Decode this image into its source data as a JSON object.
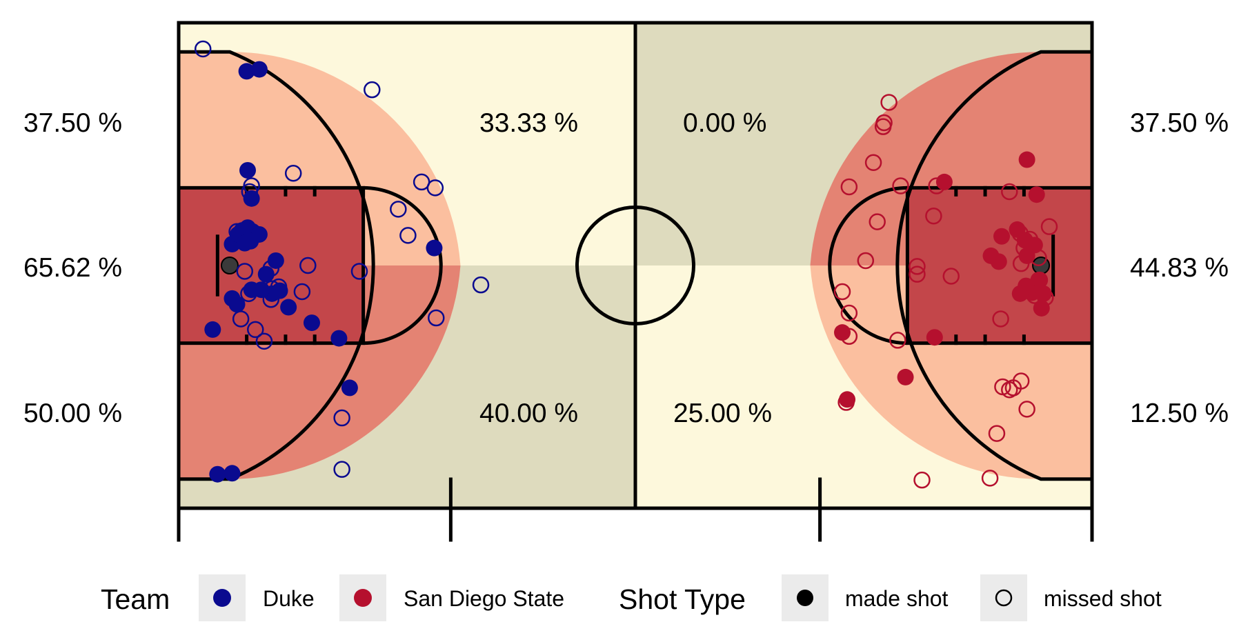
{
  "chart_data": {
    "type": "scatter",
    "colors": {
      "Duke": "#0a0a8f",
      "San Diego State": "#b5102e",
      "black": "#000000",
      "zone_light_yellow": "#fdf8dc",
      "zone_olive": "#dedbbe",
      "zone_light_orange": "#fbbf9f",
      "zone_salmon": "#e48373",
      "zone_red": "#c3464a"
    },
    "zone_labels": [
      {
        "id": "duke-top-corner",
        "text": "37.50 %"
      },
      {
        "id": "duke-paint",
        "text": "65.62 %"
      },
      {
        "id": "duke-bottom-corner",
        "text": "50.00 %"
      },
      {
        "id": "duke-top-mid",
        "text": "33.33 %"
      },
      {
        "id": "duke-bottom-mid",
        "text": "40.00 %"
      },
      {
        "id": "sdsu-top-mid",
        "text": "0.00 %"
      },
      {
        "id": "sdsu-bottom-mid",
        "text": "25.00 %"
      },
      {
        "id": "sdsu-top-corner",
        "text": "37.50 %"
      },
      {
        "id": "sdsu-paint",
        "text": "44.83 %"
      },
      {
        "id": "sdsu-bottom-corner",
        "text": "12.50 %"
      }
    ],
    "x": [
      0,
      94
    ],
    "y": [
      0,
      50
    ],
    "series": [
      {
        "name": "Duke",
        "made": [
          [
            7,
            45
          ],
          [
            8.3,
            45.2
          ],
          [
            7.1,
            34.8
          ],
          [
            7.5,
            31.9
          ],
          [
            5.5,
            27.2
          ],
          [
            6.1,
            28.2
          ],
          [
            6.5,
            28.6
          ],
          [
            7.1,
            28.9
          ],
          [
            7.6,
            28.5
          ],
          [
            8.3,
            28.2
          ],
          [
            6.8,
            27.3
          ],
          [
            7.4,
            27.5
          ],
          [
            10,
            25.5
          ],
          [
            9,
            24.1
          ],
          [
            9.6,
            22.1
          ],
          [
            10.4,
            22.4
          ],
          [
            8.5,
            22.5
          ],
          [
            7.5,
            22.5
          ],
          [
            5.5,
            21.6
          ],
          [
            6,
            21
          ],
          [
            11.3,
            20.7
          ],
          [
            13.7,
            19.1
          ],
          [
            3.5,
            18.4
          ],
          [
            16.5,
            17.5
          ],
          [
            17.6,
            12.4
          ],
          [
            4,
            3.5
          ],
          [
            5.5,
            3.6
          ],
          [
            26.3,
            26.8
          ]
        ],
        "missed": [
          [
            2.5,
            47.3
          ],
          [
            19.9,
            43.1
          ],
          [
            11.8,
            34.5
          ],
          [
            7.5,
            33.2
          ],
          [
            7.3,
            32.6
          ],
          [
            25,
            33.6
          ],
          [
            26.4,
            33
          ],
          [
            22.6,
            30.8
          ],
          [
            23.6,
            28.1
          ],
          [
            6,
            28.5
          ],
          [
            6.8,
            24.4
          ],
          [
            9.5,
            24.7
          ],
          [
            13.3,
            25
          ],
          [
            18.6,
            24.4
          ],
          [
            7.2,
            22.1
          ],
          [
            9.6,
            22.6
          ],
          [
            12.7,
            22.3
          ],
          [
            10.3,
            22.8
          ],
          [
            9.5,
            21.5
          ],
          [
            6.4,
            19.5
          ],
          [
            7.9,
            18.4
          ],
          [
            8.8,
            17.2
          ],
          [
            31.1,
            23
          ],
          [
            26.5,
            19.6
          ],
          [
            16.8,
            9.3
          ],
          [
            16.8,
            4
          ]
        ]
      },
      {
        "name": "San Diego State",
        "made": [
          [
            87.3,
            35.9
          ],
          [
            88.3,
            32.3
          ],
          [
            78.8,
            33.6
          ],
          [
            84.7,
            28
          ],
          [
            86.3,
            28.7
          ],
          [
            87.1,
            27.6
          ],
          [
            88.1,
            27.1
          ],
          [
            87.3,
            26
          ],
          [
            83.6,
            26
          ],
          [
            84.4,
            25.4
          ],
          [
            88.5,
            23.5
          ],
          [
            87.8,
            22.2
          ],
          [
            87.2,
            22.9
          ],
          [
            86.6,
            22.1
          ],
          [
            89,
            22.1
          ],
          [
            88.8,
            20.6
          ],
          [
            68.3,
            18.1
          ],
          [
            77.8,
            17.6
          ],
          [
            74.8,
            13.5
          ],
          [
            68.8,
            11.2
          ]
        ],
        "missed": [
          [
            73.1,
            41.8
          ],
          [
            72.6,
            39.7
          ],
          [
            72.5,
            39.3
          ],
          [
            71.5,
            35.6
          ],
          [
            69,
            33.1
          ],
          [
            74.3,
            33.2
          ],
          [
            78,
            33.2
          ],
          [
            85.5,
            32.6
          ],
          [
            77.7,
            30.1
          ],
          [
            89.6,
            29
          ],
          [
            71.9,
            29.5
          ],
          [
            86.6,
            28.3
          ],
          [
            87.6,
            27.7
          ],
          [
            87,
            26.8
          ],
          [
            88.5,
            25.8
          ],
          [
            86.7,
            25.2
          ],
          [
            70.7,
            25.5
          ],
          [
            76,
            24.9
          ],
          [
            76,
            24.1
          ],
          [
            79.5,
            23.9
          ],
          [
            88.6,
            23.5
          ],
          [
            88.1,
            21.9
          ],
          [
            68.3,
            22.3
          ],
          [
            89.2,
            21.7
          ],
          [
            69,
            20.1
          ],
          [
            69,
            17.7
          ],
          [
            74,
            17.3
          ],
          [
            84.6,
            19.5
          ],
          [
            86.7,
            13.1
          ],
          [
            85.5,
            12.2
          ],
          [
            84.8,
            12.5
          ],
          [
            85.9,
            12.4
          ],
          [
            87.3,
            10.2
          ],
          [
            68.7,
            10.9
          ],
          [
            84.2,
            7.7
          ],
          [
            83.5,
            3.1
          ],
          [
            76.5,
            2.9
          ]
        ]
      }
    ],
    "legend": {
      "position": "bottom",
      "team_title": "Team",
      "team_items": [
        {
          "label": "Duke",
          "color": "#0a0a8f"
        },
        {
          "label": "San Diego State",
          "color": "#b5102e"
        }
      ],
      "shot_title": "Shot Type",
      "shot_items": [
        {
          "label": "made shot",
          "filled": true
        },
        {
          "label": "missed shot",
          "filled": false
        }
      ]
    }
  }
}
